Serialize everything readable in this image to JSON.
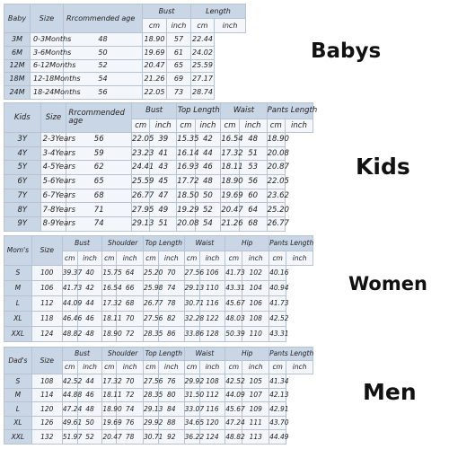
{
  "babys": {
    "label": "Babys",
    "category": "Baby",
    "headers": {
      "size": "Size",
      "age": "Rrcommended age",
      "bust": "Bust",
      "length": "Length"
    },
    "units": [
      "cm",
      "inch",
      "cm",
      "inch"
    ],
    "rows": [
      [
        "3M",
        "0-3Months",
        "48",
        "18.90",
        "57",
        "22.44"
      ],
      [
        "6M",
        "3-6Months",
        "50",
        "19.69",
        "61",
        "24.02"
      ],
      [
        "12M",
        "6-12Months",
        "52",
        "20.47",
        "65",
        "25.59"
      ],
      [
        "18M",
        "12-18Months",
        "54",
        "21.26",
        "69",
        "27.17"
      ],
      [
        "24M",
        "18-24Months",
        "56",
        "22.05",
        "73",
        "28.74"
      ]
    ]
  },
  "kids": {
    "label": "Kids",
    "category": "Kids",
    "headers": {
      "size": "Size",
      "age": "Rrcommended age",
      "bust": "Bust",
      "top_length": "Top Length",
      "waist": "Waist",
      "pants_length": "Pants Length"
    },
    "units": [
      "cm",
      "inch",
      "cm",
      "inch",
      "cm",
      "inch",
      "cm",
      "inch"
    ],
    "rows": [
      [
        "3Y",
        "2-3Years",
        "56",
        "22.05",
        "39",
        "15.35",
        "42",
        "16.54",
        "48",
        "18.90"
      ],
      [
        "4Y",
        "3-4Years",
        "59",
        "23.23",
        "41",
        "16.14",
        "44",
        "17.32",
        "51",
        "20.08"
      ],
      [
        "5Y",
        "4-5Years",
        "62",
        "24.41",
        "43",
        "16.93",
        "46",
        "18.11",
        "53",
        "20.87"
      ],
      [
        "6Y",
        "5-6Years",
        "65",
        "25.59",
        "45",
        "17.72",
        "48",
        "18.90",
        "56",
        "22.05"
      ],
      [
        "7Y",
        "6-7Years",
        "68",
        "26.77",
        "47",
        "18.50",
        "50",
        "19.69",
        "60",
        "23.62"
      ],
      [
        "8Y",
        "7-8Years",
        "71",
        "27.95",
        "49",
        "19.29",
        "52",
        "20.47",
        "64",
        "25.20"
      ],
      [
        "9Y",
        "8-9Years",
        "74",
        "29.13",
        "51",
        "20.08",
        "54",
        "21.26",
        "68",
        "26.77"
      ]
    ]
  },
  "women": {
    "label": "Women",
    "category": "Mom's",
    "headers": {
      "size": "Size",
      "bust": "Bust",
      "shoulder": "Shoulder",
      "top_length": "Top Length",
      "waist": "Waist",
      "hip": "Hip",
      "pants_length": "Pants Length"
    },
    "units": [
      "cm",
      "inch",
      "cm",
      "inch",
      "cm",
      "inch",
      "cm",
      "inch",
      "cm",
      "inch",
      "cm",
      "inch"
    ],
    "rows": [
      [
        "S",
        "100",
        "39.37",
        "40",
        "15.75",
        "64",
        "25.20",
        "70",
        "27.56",
        "106",
        "41.73",
        "102",
        "40.16"
      ],
      [
        "M",
        "106",
        "41.73",
        "42",
        "16.54",
        "66",
        "25.98",
        "74",
        "29.13",
        "110",
        "43.31",
        "104",
        "40.94"
      ],
      [
        "L",
        "112",
        "44.09",
        "44",
        "17.32",
        "68",
        "26.77",
        "78",
        "30.71",
        "116",
        "45.67",
        "106",
        "41.73"
      ],
      [
        "XL",
        "118",
        "46.46",
        "46",
        "18.11",
        "70",
        "27.56",
        "82",
        "32.28",
        "122",
        "48.03",
        "108",
        "42.52"
      ],
      [
        "XXL",
        "124",
        "48.82",
        "48",
        "18.90",
        "72",
        "28.35",
        "86",
        "33.86",
        "128",
        "50.39",
        "110",
        "43.31"
      ]
    ]
  },
  "men": {
    "label": "Men",
    "category": "Dad's",
    "headers": {
      "size": "Size",
      "bust": "Bust",
      "shoulder": "Shoulder",
      "top_length": "Top Length",
      "waist": "Waist",
      "hip": "Hip",
      "pants_length": "Pants Length"
    },
    "units": [
      "cm",
      "inch",
      "cm",
      "inch",
      "cm",
      "inch",
      "cm",
      "inch",
      "cm",
      "inch",
      "cm",
      "inch"
    ],
    "rows": [
      [
        "S",
        "108",
        "42.52",
        "44",
        "17.32",
        "70",
        "27.56",
        "76",
        "29.92",
        "108",
        "42.52",
        "105",
        "41.34"
      ],
      [
        "M",
        "114",
        "44.88",
        "46",
        "18.11",
        "72",
        "28.35",
        "80",
        "31.50",
        "112",
        "44.09",
        "107",
        "42.13"
      ],
      [
        "L",
        "120",
        "47.24",
        "48",
        "18.90",
        "74",
        "29.13",
        "84",
        "33.07",
        "116",
        "45.67",
        "109",
        "42.91"
      ],
      [
        "XL",
        "126",
        "49.61",
        "50",
        "19.69",
        "76",
        "29.92",
        "88",
        "34.65",
        "120",
        "47.24",
        "111",
        "43.70"
      ],
      [
        "XXL",
        "132",
        "51.97",
        "52",
        "20.47",
        "78",
        "30.71",
        "92",
        "36.22",
        "124",
        "48.82",
        "113",
        "44.49"
      ]
    ]
  }
}
